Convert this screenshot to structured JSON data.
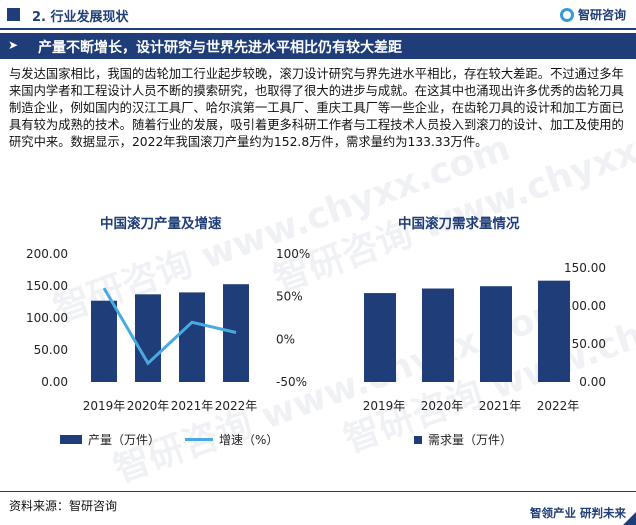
{
  "header": {
    "section_title": "2. 行业发展现状",
    "brand_name": "智研咨询"
  },
  "banner": {
    "arrow": "➤",
    "title": "产量不断增长，设计研究与世界先进水平相比仍有较大差距"
  },
  "body": {
    "paragraph": "与发达国家相比，我国的齿轮加工行业起步较晚，滚刀设计研究与界先进水平相比，存在较大差距。不过通过多年来国内学者和工程设计人员不断的摸索研究，也取得了很大的进步与成就。在这其中也涌现出许多优秀的齿轮刀具制造企业，例如国内的汉江工具厂、哈尔滨第一工具厂、重庆工具厂等一些企业，在齿轮刀具的设计和加工方面已具有较为成熟的技术。随着行业的发展，吸引着更多科研工作者与工程技术人员投入到滚刀的设计、加工及使用的研究中来。数据显示，2022年我国滚刀产量约为152.8万件，需求量约为133.33万件。"
  },
  "chart_data": [
    {
      "type": "bar",
      "title": "中国滚刀产量及增速",
      "categories": [
        "2019年",
        "2020年",
        "2021年",
        "2022年"
      ],
      "series": [
        {
          "name": "产量（万件）",
          "kind": "bar",
          "axis": "left",
          "values": [
            127,
            137,
            140,
            152.8
          ]
        },
        {
          "name": "增速（%）",
          "kind": "line",
          "axis": "right",
          "values": [
            60,
            -28,
            20,
            8
          ]
        }
      ],
      "y_left": {
        "min": 0,
        "max": 200,
        "ticks": [
          "0.00",
          "50.00",
          "100.00",
          "150.00",
          "200.00"
        ]
      },
      "y_right": {
        "min": -50,
        "max": 100,
        "ticks": [
          "-50%",
          "0%",
          "50%",
          "100%"
        ]
      },
      "grid": false,
      "legend": "bottom",
      "colors": {
        "bar": "#1f3d78",
        "line": "#4aa9e0"
      }
    },
    {
      "type": "bar",
      "title": "中国滚刀需求量情况",
      "categories": [
        "2019年",
        "2020年",
        "2021年",
        "2022年"
      ],
      "series": [
        {
          "name": "需求量（万件）",
          "values": [
            117,
            123,
            126,
            133.33
          ]
        }
      ],
      "y_right": {
        "min": 0,
        "max": 150,
        "ticks": [
          "0.00",
          "50.00",
          "100.00",
          "150.00"
        ]
      },
      "grid": false,
      "legend": "bottom",
      "colors": {
        "bar": "#1f3d78"
      }
    }
  ],
  "footer": {
    "source": "资料来源：智研咨询",
    "brand_slogan": "智领产业  研判未来"
  },
  "watermark": {
    "text": "智研咨询  www.chyxx.com"
  }
}
